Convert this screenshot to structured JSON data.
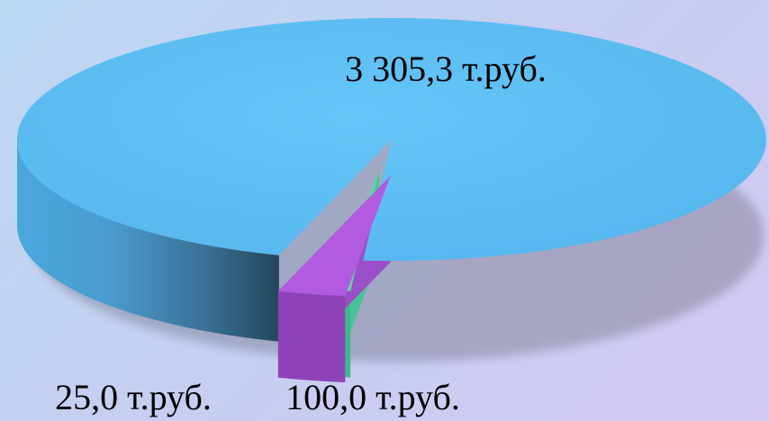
{
  "chart_data": {
    "type": "pie",
    "style": "3d",
    "slices": [
      {
        "value": 3305.3,
        "label": "3 305,3 т.руб.",
        "color": "#5fbff4"
      },
      {
        "value": 25.0,
        "label": "25,0 т.руб.",
        "color": "#5ed6a6"
      },
      {
        "value": 100.0,
        "label": "100,0 т.руб.",
        "color": "#b25ae0"
      }
    ],
    "title": "",
    "legend": "none"
  }
}
